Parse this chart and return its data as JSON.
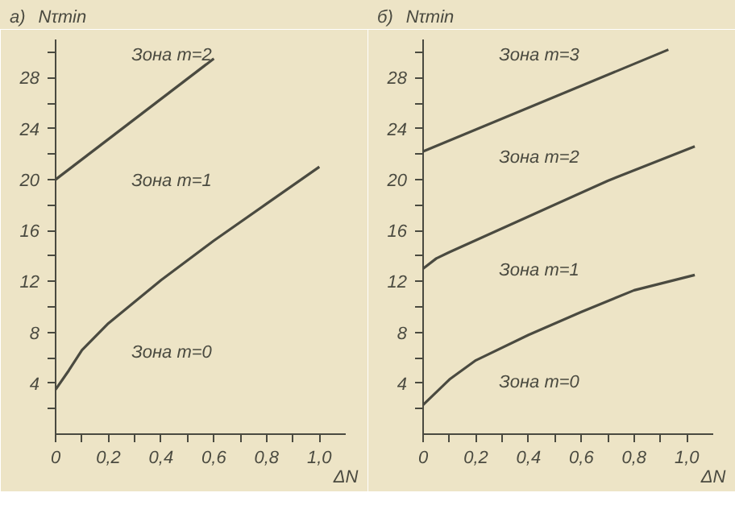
{
  "chart_data": [
    {
      "type": "line",
      "title": "а)",
      "ylabel": "Nτmin",
      "xlabel": "ΔN",
      "xlim": [
        0,
        1.1
      ],
      "ylim": [
        0,
        31
      ],
      "xticks": [
        {
          "value": 0,
          "label": "0"
        },
        {
          "value": 0.1,
          "label": null
        },
        {
          "value": 0.2,
          "label": "0,2"
        },
        {
          "value": 0.3,
          "label": null
        },
        {
          "value": 0.4,
          "label": "0,4"
        },
        {
          "value": 0.5,
          "label": null
        },
        {
          "value": 0.6,
          "label": "0,6"
        },
        {
          "value": 0.7,
          "label": null
        },
        {
          "value": 0.8,
          "label": "0,8"
        },
        {
          "value": 0.9,
          "label": null
        },
        {
          "value": 1.0,
          "label": "1,0"
        }
      ],
      "yticks": [
        {
          "value": 2,
          "label": null
        },
        4,
        {
          "value": 6,
          "label": null
        },
        8,
        {
          "value": 10,
          "label": null
        },
        12,
        {
          "value": 14,
          "label": null
        },
        16,
        {
          "value": 18,
          "label": null
        },
        20,
        {
          "value": 22,
          "label": null
        },
        24,
        {
          "value": 26,
          "label": null
        },
        28,
        {
          "value": 30,
          "label": null
        }
      ],
      "series": [
        {
          "color": "#4a4a40",
          "x": [
            0,
            0.6
          ],
          "values": [
            20,
            29.5
          ]
        },
        {
          "color": "#4a4a40",
          "x": [
            0,
            0.05,
            0.1,
            0.2,
            0.4,
            0.6,
            0.8,
            1.0
          ],
          "values": [
            3.5,
            5,
            6.6,
            8.7,
            12.1,
            15.2,
            18.1,
            21
          ]
        }
      ],
      "annotations": [
        "Зона m=2",
        "Зона m=1",
        "Зона m=0"
      ],
      "grid": false,
      "line_style": "solid"
    },
    {
      "type": "line",
      "title": "б)",
      "ylabel": "Nτmin",
      "xlabel": "ΔN",
      "xlim": [
        0,
        1.1
      ],
      "ylim": [
        0,
        31
      ],
      "xticks": [
        {
          "value": 0,
          "label": "0"
        },
        {
          "value": 0.1,
          "label": null
        },
        {
          "value": 0.2,
          "label": "0,2"
        },
        {
          "value": 0.3,
          "label": null
        },
        {
          "value": 0.4,
          "label": "0,4"
        },
        {
          "value": 0.5,
          "label": null
        },
        {
          "value": 0.6,
          "label": "0,6"
        },
        {
          "value": 0.7,
          "label": null
        },
        {
          "value": 0.8,
          "label": "0,8"
        },
        {
          "value": 0.9,
          "label": null
        },
        {
          "value": 1.0,
          "label": "1,0"
        }
      ],
      "yticks": [
        {
          "value": 2,
          "label": null
        },
        4,
        {
          "value": 6,
          "label": null
        },
        8,
        {
          "value": 10,
          "label": null
        },
        12,
        {
          "value": 14,
          "label": null
        },
        16,
        {
          "value": 18,
          "label": null
        },
        20,
        {
          "value": 22,
          "label": null
        },
        24,
        {
          "value": 26,
          "label": null
        },
        28,
        {
          "value": 30,
          "label": null
        }
      ],
      "series": [
        {
          "color": "#4a4a40",
          "x": [
            0,
            0.93
          ],
          "values": [
            22.2,
            30.2
          ]
        },
        {
          "color": "#4a4a40",
          "x": [
            0,
            0.05,
            0.1,
            0.4,
            0.7,
            1.03
          ],
          "values": [
            13,
            13.8,
            14.3,
            17.1,
            19.9,
            22.6
          ]
        },
        {
          "color": "#4a4a40",
          "x": [
            0,
            0.1,
            0.2,
            0.4,
            0.6,
            0.8,
            1.03
          ],
          "values": [
            2.3,
            4.3,
            5.8,
            7.8,
            9.6,
            11.3,
            12.5
          ]
        }
      ],
      "annotations": [
        "Зона m=3",
        "Зона m=2",
        "Зона m=1",
        "Зона m=0"
      ],
      "grid": false,
      "line_style": "solid"
    }
  ]
}
